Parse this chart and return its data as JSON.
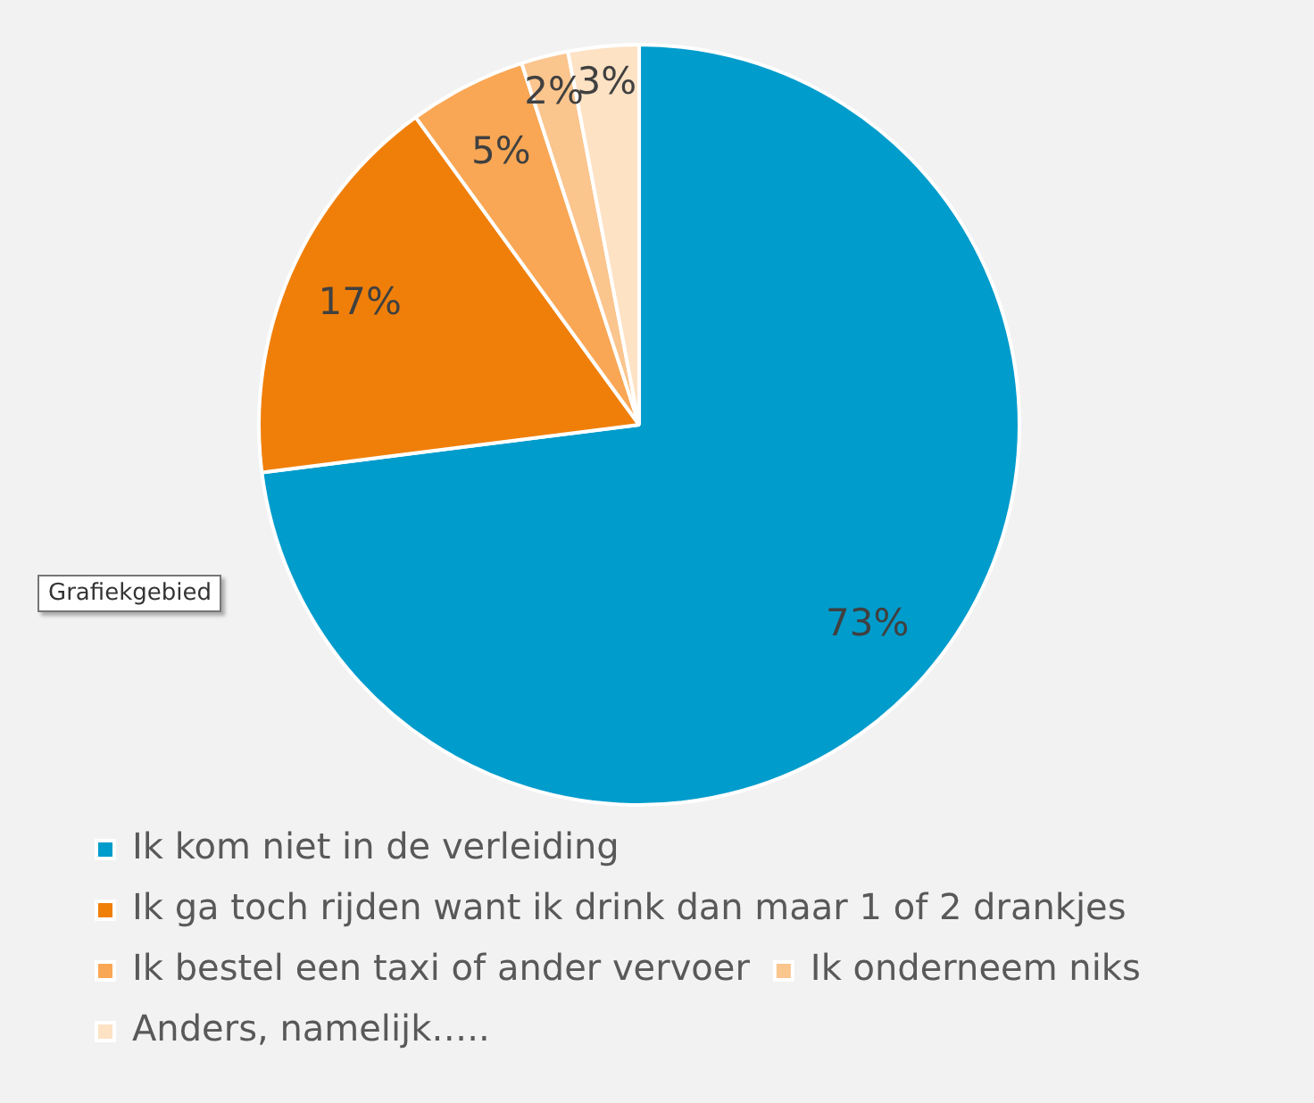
{
  "chart_data": {
    "type": "pie",
    "categories": [
      "Ik kom niet in de verleiding",
      "Ik ga toch rijden want ik drink dan maar 1 of 2 drankjes",
      "Ik bestel een taxi of ander vervoer",
      "Ik onderneem niks",
      "Anders, namelijk….."
    ],
    "values": [
      73,
      17,
      5,
      2,
      3
    ],
    "value_labels": [
      "73%",
      "17%",
      "5%",
      "2%",
      "3%"
    ],
    "colors": [
      "#009ccc",
      "#f07f09",
      "#f9a755",
      "#fbc58e",
      "#fde2c4"
    ],
    "legend": "bottom",
    "annotations": [
      "Grafiekgebied"
    ]
  }
}
